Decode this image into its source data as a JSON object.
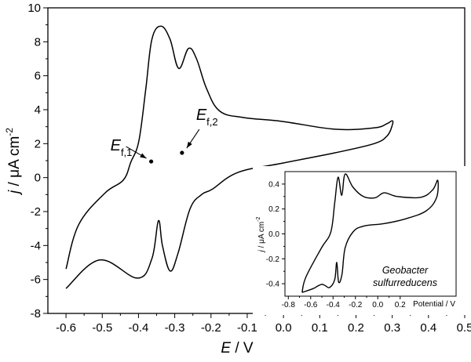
{
  "chart_data": [
    {
      "type": "line",
      "role": "main",
      "xlabel": {
        "symbol": "E",
        "unit": " / V"
      },
      "ylabel": {
        "symbol": "j",
        "unit": " / μA cm",
        "exponent": "-2"
      },
      "xlim": [
        -0.65,
        0.5
      ],
      "ylim": [
        -8,
        10
      ],
      "xticks": [
        "-0.6",
        "-0.5",
        "-0.4",
        "-0.3",
        "-0.2",
        "-0.1",
        "0.0",
        "0.1",
        "0.2",
        "0.3",
        "0.4",
        "0.5"
      ],
      "yticks": [
        "-8",
        "-6",
        "-4",
        "-2",
        "0",
        "2",
        "4",
        "6",
        "8",
        "10"
      ],
      "grid": false,
      "line_color": "#000000",
      "series": [
        {
          "x": [
            -0.6,
            -0.565,
            -0.493,
            -0.442,
            -0.421,
            -0.399,
            -0.38,
            -0.363,
            -0.338,
            -0.313,
            -0.289,
            -0.262,
            -0.24,
            -0.212,
            -0.176,
            -0.111,
            -0.003,
            0.142,
            0.25,
            0.285,
            0.3,
            0.3,
            0.286,
            0.25,
            0.142,
            -0.003,
            -0.125,
            -0.197,
            -0.226,
            -0.258,
            -0.291,
            -0.313,
            -0.334,
            -0.345,
            -0.363,
            -0.403,
            -0.507,
            -0.6
          ],
          "y": [
            -5.38,
            -2.77,
            -0.92,
            -0.15,
            0.92,
            2.16,
            5.2,
            8.15,
            8.92,
            8.15,
            6.43,
            7.61,
            7.0,
            5.23,
            3.92,
            3.54,
            3.31,
            2.85,
            2.93,
            3.17,
            3.35,
            3.08,
            2.46,
            2.0,
            1.46,
            0.85,
            0.31,
            -0.69,
            -1.0,
            -1.85,
            -4.46,
            -5.5,
            -4.0,
            -2.54,
            -4.77,
            -5.92,
            -4.85,
            -6.53
          ]
        }
      ],
      "annotations": [
        {
          "symbol": "E",
          "subscript": "f,1",
          "x": -0.365,
          "y": 0.95
        },
        {
          "symbol": "E",
          "subscript": "f,2",
          "x": -0.28,
          "y": 1.46
        }
      ]
    },
    {
      "type": "line",
      "role": "inset",
      "xlabel": "Potential / V",
      "ylabel": {
        "symbol": "j",
        "unit": " / μA cm",
        "exponent": "-2"
      },
      "xlim": [
        -0.83,
        0.7
      ],
      "ylim": [
        -0.5,
        0.5
      ],
      "xticks": [
        "-0.8",
        "-0.6",
        "-0.4",
        "-0.2",
        "0.0",
        "0.2"
      ],
      "yticks": [
        "-0.4",
        "-0.2",
        "0.0",
        "0.2",
        "0.4"
      ],
      "grid": false,
      "organism": [
        "Geobacter",
        "sulfurreducens"
      ],
      "series": [
        {
          "x": [
            -0.677,
            -0.642,
            -0.502,
            -0.42,
            -0.385,
            -0.355,
            -0.322,
            -0.292,
            -0.222,
            -0.129,
            -0.024,
            0.058,
            0.175,
            0.385,
            0.49,
            0.536,
            0.525,
            0.431,
            0.245,
            0.058,
            -0.129,
            -0.222,
            -0.292,
            -0.32,
            -0.35,
            -0.367,
            -0.385,
            -0.43,
            -0.47,
            -0.5,
            -0.54,
            -0.58,
            -0.677
          ],
          "y": [
            -0.47,
            -0.345,
            -0.11,
            0.015,
            0.25,
            0.455,
            0.31,
            0.48,
            0.375,
            0.3,
            0.29,
            0.33,
            0.3,
            0.294,
            0.353,
            0.43,
            0.29,
            0.184,
            0.12,
            0.083,
            0.062,
            0.015,
            -0.112,
            -0.324,
            -0.387,
            -0.229,
            -0.366,
            -0.43,
            -0.415,
            -0.405,
            -0.42,
            -0.44,
            -0.47
          ]
        }
      ]
    }
  ]
}
